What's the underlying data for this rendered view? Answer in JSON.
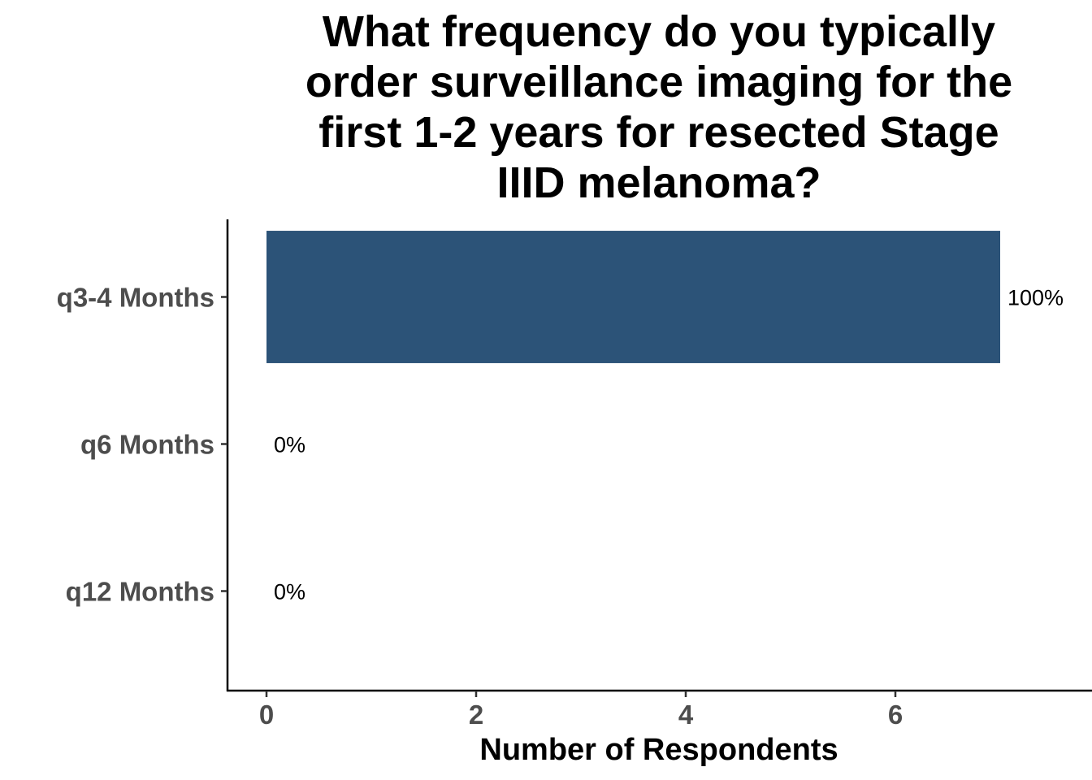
{
  "chart_data": {
    "type": "bar",
    "orientation": "horizontal",
    "title_lines": [
      "What frequency do you typically",
      "order surveillance imaging for the",
      "first 1-2 years for resected Stage",
      "IIID melanoma?"
    ],
    "categories": [
      "q3-4 Months",
      "q6 Months",
      "q12 Months"
    ],
    "values": [
      7,
      0,
      0
    ],
    "data_labels": [
      "100%",
      "0%",
      "0%"
    ],
    "xlabel": "Number of Respondents",
    "ylabel": "",
    "xlim": [
      0,
      7
    ],
    "x_ticks": [
      "0",
      "2",
      "4",
      "6"
    ],
    "grid": false,
    "legend": "none",
    "bar_color": "#2c5378"
  }
}
